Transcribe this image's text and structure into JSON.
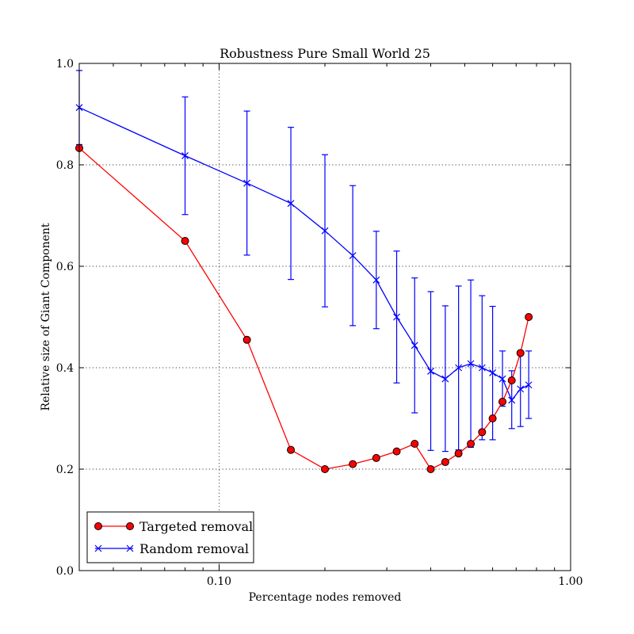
{
  "chart_data": {
    "type": "line",
    "title": "Robustness Pure Small World 25",
    "xlabel": "Percentage nodes removed",
    "ylabel": "Relative size of Giant Component",
    "xscale": "log",
    "xlim": [
      0.04,
      1.0
    ],
    "ylim": [
      0.0,
      1.0
    ],
    "x_ticks": [
      0.1,
      1.0
    ],
    "x_tick_labels": [
      "0.10",
      "1.00"
    ],
    "y_ticks": [
      0.0,
      0.2,
      0.4,
      0.6,
      0.8,
      1.0
    ],
    "y_tick_labels": [
      "0.0",
      "0.2",
      "0.4",
      "0.6",
      "0.8",
      "1.0"
    ],
    "grid": true,
    "legend_position": "lower-left",
    "series": [
      {
        "name": "Targeted removal",
        "color": "#ff0000",
        "marker": "circle",
        "x": [
          0.04,
          0.08,
          0.12,
          0.16,
          0.2,
          0.24,
          0.28,
          0.32,
          0.36,
          0.4,
          0.44,
          0.48,
          0.52,
          0.56,
          0.6,
          0.64,
          0.68,
          0.72,
          0.76
        ],
        "values": [
          0.833,
          0.65,
          0.455,
          0.238,
          0.2,
          0.21,
          0.222,
          0.235,
          0.25,
          0.2,
          0.214,
          0.231,
          0.25,
          0.273,
          0.3,
          0.333,
          0.375,
          0.429,
          0.5
        ]
      },
      {
        "name": "Random removal",
        "color": "#0000ff",
        "marker": "x",
        "x": [
          0.04,
          0.08,
          0.12,
          0.16,
          0.2,
          0.24,
          0.28,
          0.32,
          0.36,
          0.4,
          0.44,
          0.48,
          0.52,
          0.56,
          0.6,
          0.64,
          0.68,
          0.72,
          0.76
        ],
        "values": [
          0.913,
          0.818,
          0.764,
          0.724,
          0.67,
          0.621,
          0.573,
          0.5,
          0.444,
          0.393,
          0.378,
          0.4,
          0.408,
          0.4,
          0.39,
          0.378,
          0.336,
          0.358,
          0.366
        ],
        "err_low": [
          0.84,
          0.702,
          0.622,
          0.574,
          0.52,
          0.483,
          0.477,
          0.37,
          0.311,
          0.237,
          0.235,
          0.238,
          0.243,
          0.258,
          0.258,
          0.324,
          0.28,
          0.284,
          0.3
        ],
        "err_high": [
          0.986,
          0.934,
          0.906,
          0.874,
          0.82,
          0.759,
          0.669,
          0.63,
          0.577,
          0.55,
          0.522,
          0.561,
          0.573,
          0.542,
          0.521,
          0.433,
          0.394,
          0.43,
          0.433
        ]
      }
    ]
  }
}
